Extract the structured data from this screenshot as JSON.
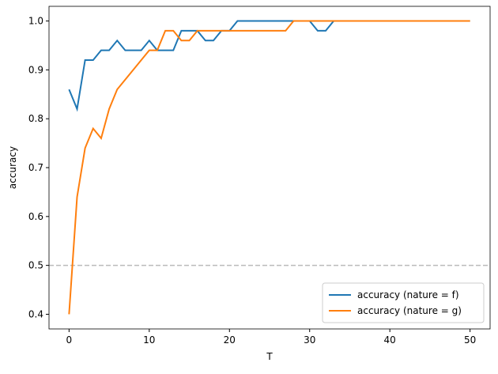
{
  "chart_data": {
    "type": "line",
    "xlabel": "T",
    "ylabel": "accuracy",
    "x": [
      0,
      1,
      2,
      3,
      4,
      5,
      6,
      7,
      8,
      9,
      10,
      11,
      12,
      13,
      14,
      15,
      16,
      17,
      18,
      19,
      20,
      21,
      22,
      23,
      24,
      25,
      26,
      27,
      28,
      29,
      30,
      31,
      32,
      33,
      34,
      35,
      36,
      37,
      38,
      39,
      40,
      41,
      42,
      43,
      44,
      45,
      46,
      47,
      48,
      49,
      50
    ],
    "series": [
      {
        "name": "accuracy (nature = f)",
        "color": "#1f77b4",
        "values": [
          0.86,
          0.82,
          0.92,
          0.92,
          0.94,
          0.94,
          0.96,
          0.94,
          0.94,
          0.94,
          0.96,
          0.94,
          0.94,
          0.94,
          0.98,
          0.98,
          0.98,
          0.96,
          0.96,
          0.98,
          0.98,
          1.0,
          1.0,
          1.0,
          1.0,
          1.0,
          1.0,
          1.0,
          1.0,
          1.0,
          1.0,
          0.98,
          0.98,
          1.0,
          1.0,
          1.0,
          1.0,
          1.0,
          1.0,
          1.0,
          1.0,
          1.0,
          1.0,
          1.0,
          1.0,
          1.0,
          1.0,
          1.0,
          1.0,
          1.0,
          1.0
        ]
      },
      {
        "name": "accuracy (nature = g)",
        "color": "#ff7f0e",
        "values": [
          0.4,
          0.64,
          0.74,
          0.78,
          0.76,
          0.82,
          0.86,
          0.88,
          0.9,
          0.92,
          0.94,
          0.94,
          0.98,
          0.98,
          0.96,
          0.96,
          0.98,
          0.98,
          0.98,
          0.98,
          0.98,
          0.98,
          0.98,
          0.98,
          0.98,
          0.98,
          0.98,
          0.98,
          1.0,
          1.0,
          1.0,
          1.0,
          1.0,
          1.0,
          1.0,
          1.0,
          1.0,
          1.0,
          1.0,
          1.0,
          1.0,
          1.0,
          1.0,
          1.0,
          1.0,
          1.0,
          1.0,
          1.0,
          1.0,
          1.0,
          1.0
        ]
      }
    ],
    "hline": 0.5,
    "hline_color": "#bbbbbb",
    "xlim": [
      -2.5,
      52.5
    ],
    "xticks": [
      0,
      10,
      20,
      30,
      40,
      50
    ],
    "ylim": [
      0.37,
      1.03
    ],
    "yticks": [
      0.4,
      0.5,
      0.6,
      0.7,
      0.8,
      0.9,
      {
        "value": 1,
        "label": "1.0"
      }
    ],
    "legend": "lower right"
  }
}
